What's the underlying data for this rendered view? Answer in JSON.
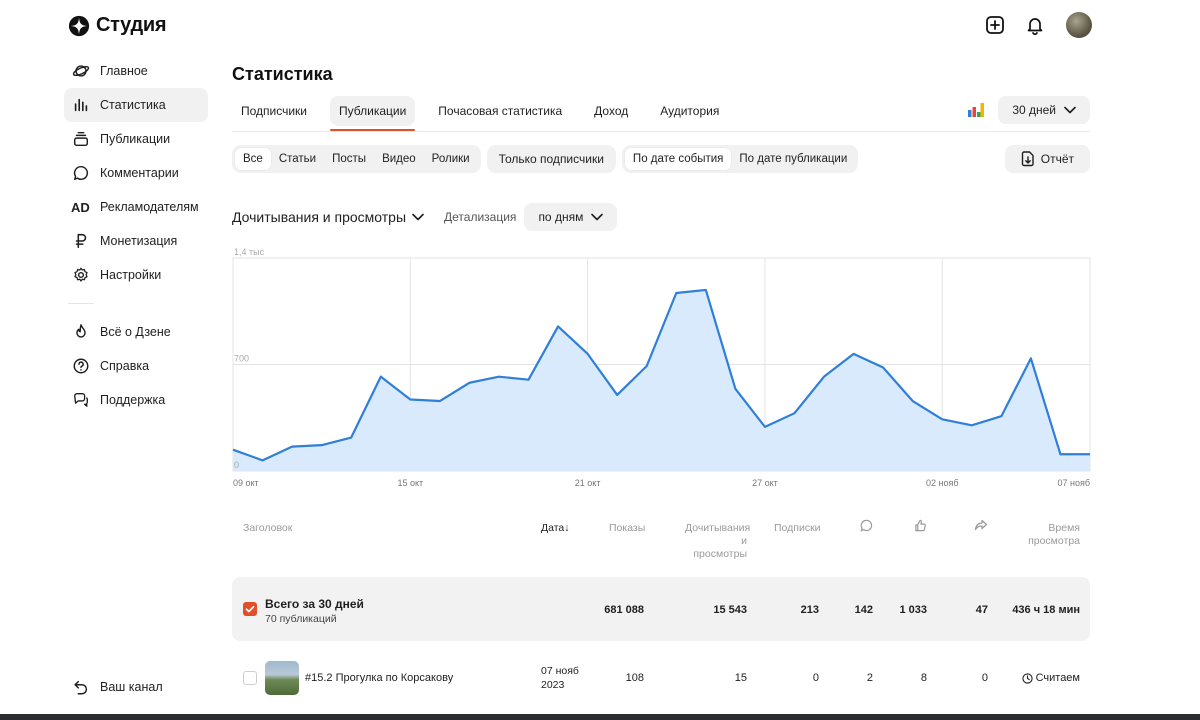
{
  "app": {
    "logo_text": "Студия",
    "colors": {
      "accent": "#e0512b",
      "line": "#2f7fd8",
      "fill": "#d9eafc"
    }
  },
  "header": {
    "icons": [
      "plus-square-icon",
      "bell-icon",
      "avatar"
    ]
  },
  "sidebar": {
    "items": [
      {
        "label": "Главное",
        "icon": "planet-icon"
      },
      {
        "label": "Статистика",
        "icon": "bar-chart-icon",
        "active": true
      },
      {
        "label": "Публикации",
        "icon": "layers-icon"
      },
      {
        "label": "Комментарии",
        "icon": "comment-icon"
      },
      {
        "label": "Рекламодателям",
        "icon": "ad-icon"
      },
      {
        "label": "Монетизация",
        "icon": "ruble-icon"
      },
      {
        "label": "Настройки",
        "icon": "gear-icon"
      }
    ],
    "secondary": [
      {
        "label": "Всё о Дзене",
        "icon": "flame-icon"
      },
      {
        "label": "Справка",
        "icon": "question-icon"
      },
      {
        "label": "Поддержка",
        "icon": "chat-icon"
      }
    ],
    "bottom": {
      "label": "Ваш канал",
      "icon": "back-arrow-icon"
    }
  },
  "main": {
    "title": "Статистика",
    "tabs": [
      "Подписчики",
      "Публикации",
      "Почасовая статистика",
      "Доход",
      "Аудитория"
    ],
    "active_tab": 1,
    "period": "30 дней",
    "filters": {
      "type": [
        "Все",
        "Статьи",
        "Посты",
        "Видео",
        "Ролики"
      ],
      "subscribers_only": "Только подписчики",
      "date_mode": [
        "По дате события",
        "По дате публикации"
      ]
    },
    "report_button": "Отчёт",
    "metric": "Дочитывания и просмотры",
    "detail_label": "Детализация",
    "detail_value": "по дням"
  },
  "chart_data": {
    "type": "area",
    "x_labels": [
      "09 окт",
      "15 окт",
      "21 окт",
      "27 окт",
      "02 нояб",
      "07 нояб"
    ],
    "y_ticks": [
      "1,4 тыс",
      "700",
      "0"
    ],
    "ylim": [
      0,
      1400
    ],
    "values": [
      140,
      70,
      160,
      170,
      220,
      620,
      470,
      460,
      580,
      620,
      600,
      950,
      770,
      500,
      690,
      1170,
      1190,
      540,
      290,
      380,
      620,
      770,
      680,
      460,
      340,
      300,
      360,
      740,
      110,
      110
    ],
    "grid": true
  },
  "table": {
    "headers": {
      "title": "Заголовок",
      "date": "Дата",
      "impressions": "Показы",
      "reads1": "Дочитывания",
      "reads2": "и просмотры",
      "subs": "Подписки",
      "time1": "Время",
      "time2": "просмотра"
    },
    "total": {
      "title": "Всего за 30 дней",
      "subtitle": "70 публикаций",
      "impressions": "681 088",
      "reads": "15 543",
      "subs": "213",
      "comments": "142",
      "likes": "1 033",
      "shares": "47",
      "time": "436 ч 18 мин"
    },
    "rows": [
      {
        "title": "#15.2 Прогулка по Корсакову",
        "date1": "07 нояб",
        "date2": "2023",
        "impressions": "108",
        "reads": "15",
        "subs": "0",
        "comments": "2",
        "likes": "8",
        "shares": "0",
        "time": "Считаем"
      }
    ]
  }
}
